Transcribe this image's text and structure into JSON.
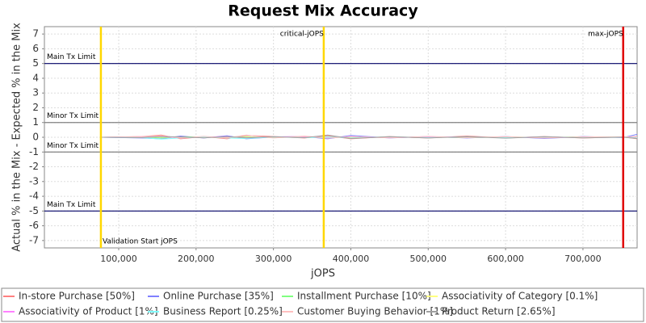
{
  "chart_data": {
    "type": "line",
    "title": "Request Mix Accuracy",
    "x_label": "jOPS",
    "y_label": "Actual % in the Mix - Expected % in the Mix",
    "xlim": [
      4000,
      770000
    ],
    "ylim": [
      -7.5,
      7.5
    ],
    "xticks": [
      {
        "value": 100000,
        "label": "100,000"
      },
      {
        "value": 200000,
        "label": "200,000"
      },
      {
        "value": 300000,
        "label": "300,000"
      },
      {
        "value": 400000,
        "label": "400,000"
      },
      {
        "value": 500000,
        "label": "500,000"
      },
      {
        "value": 600000,
        "label": "600,000"
      },
      {
        "value": 700000,
        "label": "700,000"
      }
    ],
    "yticks": [
      -7,
      -6,
      -5,
      -4,
      -3,
      -2,
      -1,
      0,
      1,
      2,
      3,
      4,
      5,
      6,
      7
    ],
    "grid": true,
    "threshold_lines": [
      {
        "value": 5,
        "label": "Main Tx Limit",
        "color": "#000066"
      },
      {
        "value": 1,
        "label": "Minor Tx Limit",
        "color": "#808080"
      },
      {
        "value": -1,
        "label": "Minor Tx Limit",
        "color": "#808080"
      },
      {
        "value": -5,
        "label": "Main Tx Limit",
        "color": "#000066"
      }
    ],
    "markers": [
      {
        "x": 77000,
        "label": "Validation Start jOPS",
        "color": "#ffd700",
        "anchor": "bottom"
      },
      {
        "x": 365000,
        "label": "critical-jOPS",
        "color": "#ffd700",
        "anchor": "top"
      },
      {
        "x": 752000,
        "label": "max-jOPS",
        "color": "#e00000",
        "anchor": "top"
      }
    ],
    "x": [
      77000,
      130000,
      155000,
      180000,
      210000,
      240000,
      265000,
      300000,
      340000,
      370000,
      400000,
      450000,
      500000,
      550000,
      600000,
      650000,
      700000,
      752000,
      770000
    ],
    "series": [
      {
        "name": "In-store Purchase [50%]",
        "color": "#ff8080",
        "values": [
          0,
          0.05,
          0.15,
          -0.1,
          0.05,
          -0.1,
          0.12,
          0.05,
          -0.05,
          0.1,
          -0.1,
          0.05,
          -0.05,
          0.08,
          -0.05,
          0.05,
          -0.05,
          0.02,
          -0.1
        ]
      },
      {
        "name": "Online Purchase [35%]",
        "color": "#8080ff",
        "values": [
          0,
          -0.05,
          -0.1,
          0.08,
          -0.05,
          0.1,
          -0.1,
          0.02,
          0.05,
          -0.1,
          0.12,
          -0.05,
          0.05,
          -0.05,
          0.05,
          -0.08,
          0.05,
          -0.02,
          0.2
        ]
      },
      {
        "name": "Installment Purchase [10%]",
        "color": "#80ff80",
        "values": [
          0,
          0.02,
          -0.05,
          0.03,
          0.02,
          -0.03,
          0.04,
          -0.02,
          0.03,
          -0.04,
          0.03,
          -0.02,
          0.02,
          -0.03,
          0.02,
          -0.02,
          0.03,
          0.01,
          0.05
        ]
      },
      {
        "name": "Associativity of Category [0.1%]",
        "color": "#ffff80",
        "values": [
          0,
          0.01,
          0.02,
          -0.01,
          0.01,
          -0.02,
          0.01,
          0.02,
          -0.01,
          0.01,
          -0.01,
          0.01,
          -0.01,
          0.01,
          0.01,
          -0.01,
          0.01,
          0,
          0
        ]
      },
      {
        "name": "Associativity of Product [1%]",
        "color": "#ff80ff",
        "values": [
          0,
          0.03,
          0.05,
          -0.04,
          0.02,
          0.04,
          -0.03,
          0.03,
          0.05,
          -0.02,
          0.04,
          -0.03,
          0.02,
          0.03,
          -0.02,
          0.02,
          -0.03,
          0.01,
          0.02
        ]
      },
      {
        "name": "Business Report [0.25%]",
        "color": "#80ffff",
        "values": [
          0,
          -0.03,
          -0.12,
          -0.05,
          0.03,
          -0.05,
          -0.08,
          0.02,
          -0.03,
          0.02,
          -0.05,
          0.03,
          -0.02,
          0.02,
          -0.03,
          0.02,
          -0.02,
          0,
          -0.05
        ]
      },
      {
        "name": "Customer Buying Behavior [1%]",
        "color": "#ffc0c0",
        "values": [
          0,
          0.04,
          0.1,
          -0.05,
          0.06,
          -0.04,
          0.15,
          -0.05,
          0.08,
          -0.06,
          0.05,
          -0.04,
          0.06,
          -0.03,
          0.04,
          -0.05,
          0.03,
          0.02,
          0.05
        ]
      },
      {
        "name": "Product Return [2.65%]",
        "color": "#a0a0a0",
        "values": [
          0,
          -0.02,
          0.05,
          0.03,
          -0.04,
          0.05,
          -0.04,
          0.04,
          -0.03,
          0.15,
          -0.08,
          0.04,
          -0.05,
          0.05,
          -0.06,
          0.04,
          -0.04,
          0.01,
          -0.08
        ]
      }
    ]
  }
}
